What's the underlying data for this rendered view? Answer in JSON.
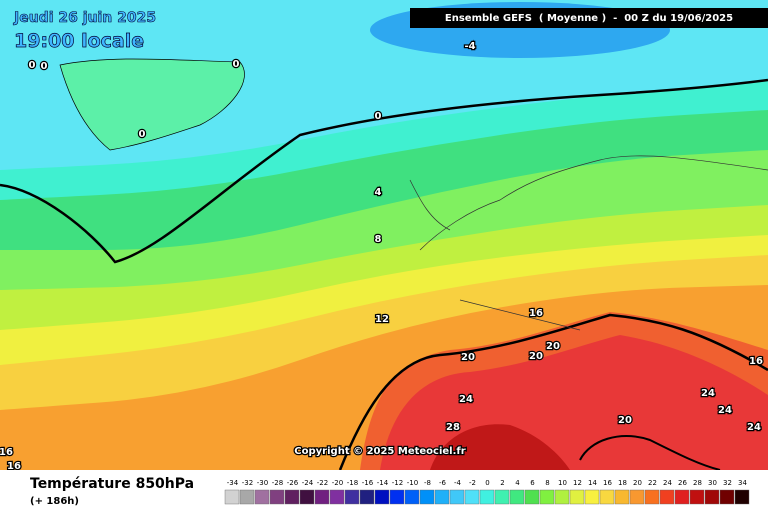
{
  "header": {
    "date": "Jeudi 26 juin 2025",
    "time": "19:00 locale",
    "run": "Ensemble GEFS  ( Moyenne )  -  00 Z du 19/06/2025"
  },
  "footer": {
    "title": "Température 850hPa",
    "lead": "(+ 186h)",
    "copyright": "Copyright © 2025 Meteociel.fr"
  },
  "contour_labels": [
    -4,
    0,
    0,
    0,
    0,
    0,
    4,
    8,
    12,
    16,
    20,
    20,
    20,
    24,
    28,
    24,
    24,
    24,
    20,
    16,
    16,
    16
  ],
  "legend": {
    "values": [
      -34,
      -32,
      -30,
      -28,
      -26,
      -24,
      -22,
      -20,
      -18,
      -16,
      -14,
      -12,
      -10,
      -8,
      -6,
      -4,
      -2,
      0,
      2,
      4,
      6,
      8,
      10,
      12,
      14,
      16,
      18,
      20,
      22,
      24,
      26,
      28,
      30,
      32,
      34
    ],
    "colors": [
      "#d2d2d2",
      "#a8a8a8",
      "#a070a0",
      "#804080",
      "#602060",
      "#401040",
      "#702080",
      "#8030a0",
      "#4030a0",
      "#202080",
      "#0010c0",
      "#0030f0",
      "#0060f8",
      "#0090f8",
      "#20b0f8",
      "#40c8f8",
      "#50e0f8",
      "#40f0e0",
      "#40f0b0",
      "#40e880",
      "#50e050",
      "#80f040",
      "#b0f040",
      "#e0f040",
      "#f8f040",
      "#f8d840",
      "#f8b830",
      "#f89830",
      "#f87020",
      "#f04020",
      "#e02020",
      "#c01010",
      "#a00808",
      "#700000",
      "#200000"
    ]
  }
}
